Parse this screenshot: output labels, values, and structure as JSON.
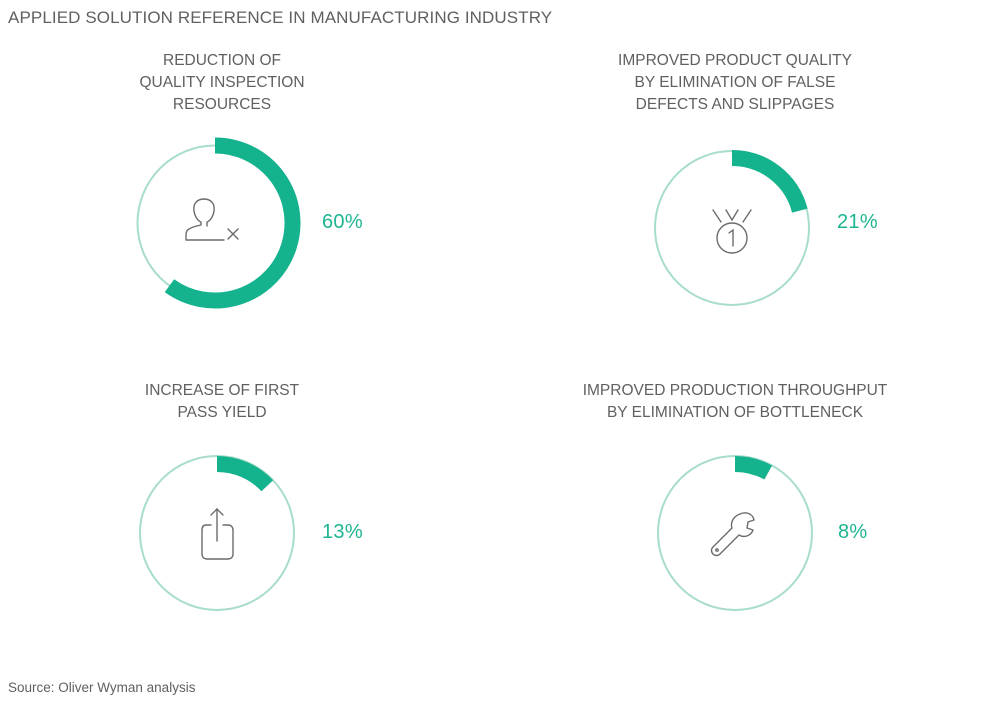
{
  "title": "APPLIED SOLUTION REFERENCE IN MANUFACTURING INDUSTRY",
  "source": "Source: Oliver Wyman analysis",
  "colors": {
    "accent": "#14b38e",
    "ring": "#a8dccb",
    "text": "#5f6062",
    "icon": "#6b6c6e"
  },
  "chart_data": [
    {
      "type": "pie",
      "title_lines": [
        "REDUCTION OF",
        "QUALITY INSPECTION",
        "RESOURCES"
      ],
      "value": 60,
      "label": "60%",
      "icon": "user-remove-icon"
    },
    {
      "type": "pie",
      "title_lines": [
        "IMPROVED PRODUCT QUALITY",
        "BY ELIMINATION OF FALSE",
        "DEFECTS AND SLIPPAGES"
      ],
      "value": 21,
      "label": "21%",
      "icon": "medal-icon"
    },
    {
      "type": "pie",
      "title_lines": [
        "INCREASE OF FIRST",
        "PASS YIELD"
      ],
      "value": 13,
      "label": "13%",
      "icon": "upload-icon"
    },
    {
      "type": "pie",
      "title_lines": [
        "IMPROVED PRODUCTION THROUGHPUT",
        "BY ELIMINATION OF BOTTLENECK"
      ],
      "value": 8,
      "label": "8%",
      "icon": "wrench-icon"
    }
  ]
}
